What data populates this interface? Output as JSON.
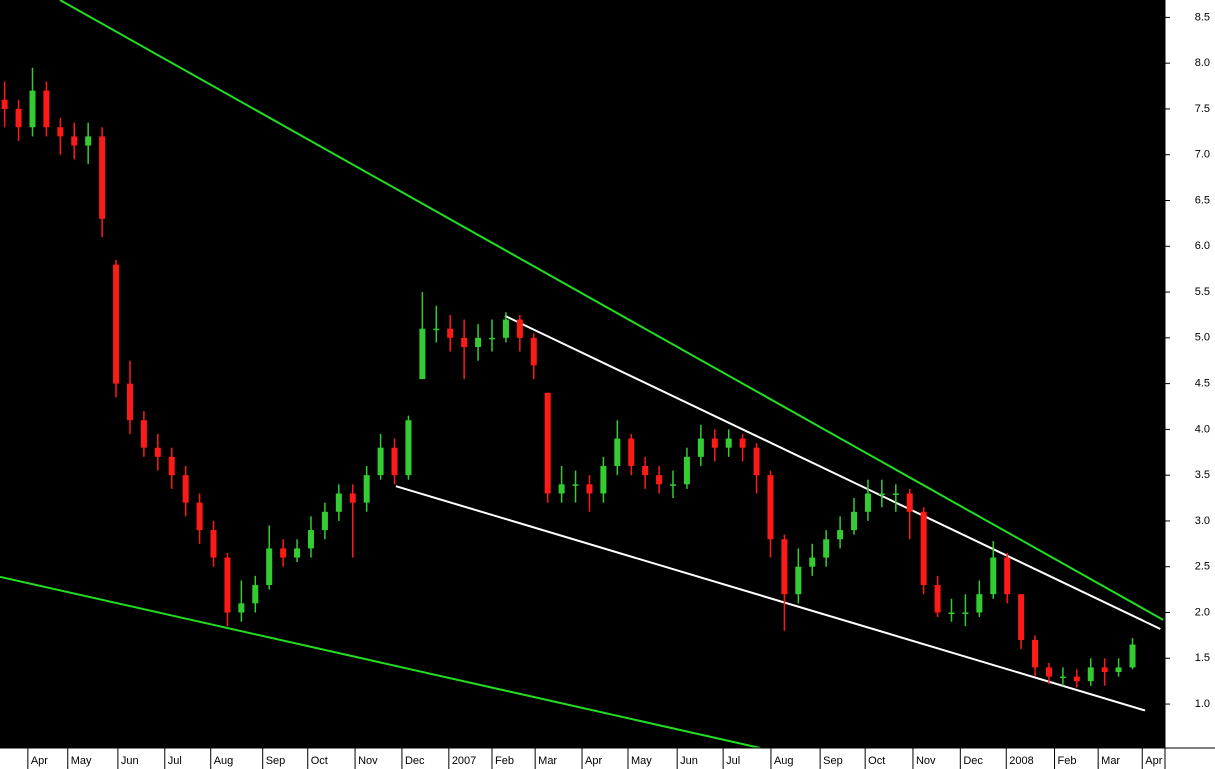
{
  "chart_data": {
    "type": "candlestick",
    "x": [
      -0.5,
      -0.2,
      0.1,
      0.4,
      0.7,
      1.0,
      1.3,
      1.6,
      1.9,
      2.2,
      2.5,
      2.8,
      3.1,
      3.4,
      3.7,
      4.0,
      4.3,
      4.6,
      4.9,
      5.2,
      5.5,
      5.8,
      6.1,
      6.4,
      6.7,
      7.0,
      7.3,
      7.6,
      7.9,
      8.2,
      8.5,
      8.8,
      9.1,
      9.4,
      9.7,
      10.0,
      10.3,
      10.6,
      10.9,
      11.2,
      11.5,
      11.8,
      12.1,
      12.4,
      12.7,
      13.0,
      13.3,
      13.6,
      13.9,
      14.2,
      14.5,
      14.8,
      15.1,
      15.4,
      15.7,
      16.0,
      16.3,
      16.6,
      16.9,
      17.2,
      17.5,
      17.8,
      18.1,
      18.4,
      18.7,
      19.0,
      19.3,
      19.6,
      19.9,
      20.2,
      20.5,
      20.8,
      21.1,
      21.4,
      21.7,
      22.0,
      22.3,
      22.6,
      22.9,
      23.2,
      23.5,
      23.8
    ],
    "open": [
      7.6,
      7.5,
      7.3,
      7.7,
      7.3,
      7.2,
      7.1,
      7.2,
      5.8,
      4.5,
      4.1,
      3.8,
      3.7,
      3.5,
      3.2,
      2.9,
      2.6,
      2.0,
      2.1,
      2.3,
      2.7,
      2.6,
      2.7,
      2.9,
      3.1,
      3.3,
      3.2,
      3.5,
      3.8,
      3.5,
      4.55,
      5.1,
      5.1,
      5.0,
      4.9,
      5.0,
      5.0,
      5.2,
      5.0,
      4.4,
      3.3,
      3.4,
      3.4,
      3.3,
      3.6,
      3.9,
      3.6,
      3.5,
      3.4,
      3.4,
      3.7,
      3.9,
      3.8,
      3.9,
      3.8,
      3.5,
      2.8,
      2.2,
      2.5,
      2.6,
      2.8,
      2.9,
      3.1,
      3.3,
      3.3,
      3.3,
      3.1,
      2.3,
      2.0,
      2.0,
      2.0,
      2.2,
      2.6,
      2.2,
      1.7,
      1.4,
      1.3,
      1.3,
      1.25,
      1.4,
      1.35,
      1.4
    ],
    "high": [
      7.8,
      7.6,
      7.95,
      7.8,
      7.4,
      7.35,
      7.35,
      7.3,
      5.85,
      4.75,
      4.2,
      3.95,
      3.8,
      3.6,
      3.3,
      3.0,
      2.65,
      2.35,
      2.4,
      2.95,
      2.8,
      2.8,
      3.05,
      3.2,
      3.4,
      3.4,
      3.6,
      3.95,
      3.9,
      4.15,
      5.5,
      5.35,
      5.25,
      5.2,
      5.15,
      5.2,
      5.28,
      5.25,
      5.05,
      4.4,
      3.6,
      3.55,
      3.5,
      3.7,
      4.1,
      3.95,
      3.7,
      3.6,
      3.55,
      3.8,
      4.05,
      4.0,
      4.0,
      3.95,
      3.85,
      3.55,
      2.85,
      2.7,
      2.75,
      2.9,
      3.05,
      3.25,
      3.45,
      3.45,
      3.4,
      3.35,
      3.15,
      2.4,
      2.15,
      2.2,
      2.35,
      2.78,
      2.65,
      2.2,
      1.75,
      1.45,
      1.4,
      1.38,
      1.5,
      1.5,
      1.5,
      1.72
    ],
    "low": [
      7.3,
      7.15,
      7.2,
      7.2,
      7.0,
      6.95,
      6.9,
      6.1,
      4.35,
      3.95,
      3.7,
      3.55,
      3.35,
      3.05,
      2.75,
      2.5,
      1.85,
      1.9,
      2.0,
      2.25,
      2.5,
      2.55,
      2.6,
      2.8,
      3.0,
      2.6,
      3.1,
      3.45,
      3.4,
      3.45,
      4.55,
      4.95,
      4.85,
      4.55,
      4.75,
      4.85,
      4.95,
      4.85,
      4.55,
      3.2,
      3.2,
      3.2,
      3.1,
      3.2,
      3.5,
      3.5,
      3.35,
      3.3,
      3.25,
      3.35,
      3.6,
      3.65,
      3.7,
      3.65,
      3.3,
      2.6,
      1.8,
      2.1,
      2.4,
      2.5,
      2.7,
      2.85,
      3.0,
      3.15,
      3.1,
      2.8,
      2.2,
      1.95,
      1.9,
      1.85,
      1.95,
      2.15,
      2.1,
      1.6,
      1.3,
      1.22,
      1.2,
      1.18,
      1.2,
      1.2,
      1.3,
      1.38
    ],
    "close": [
      7.5,
      7.3,
      7.7,
      7.3,
      7.2,
      7.1,
      7.2,
      6.3,
      4.5,
      4.1,
      3.8,
      3.7,
      3.5,
      3.2,
      2.9,
      2.6,
      2.0,
      2.1,
      2.3,
      2.7,
      2.6,
      2.7,
      2.9,
      3.1,
      3.3,
      3.2,
      3.5,
      3.8,
      3.5,
      4.1,
      5.1,
      5.1,
      5.0,
      4.9,
      5.0,
      5.0,
      5.2,
      5.0,
      4.7,
      3.3,
      3.4,
      3.4,
      3.3,
      3.6,
      3.9,
      3.6,
      3.5,
      3.4,
      3.4,
      3.7,
      3.9,
      3.8,
      3.9,
      3.8,
      3.5,
      2.8,
      2.2,
      2.5,
      2.6,
      2.8,
      2.9,
      3.1,
      3.3,
      3.3,
      3.3,
      3.1,
      2.3,
      2.0,
      2.0,
      2.0,
      2.2,
      2.6,
      2.2,
      1.7,
      1.4,
      1.3,
      1.3,
      1.25,
      1.4,
      1.35,
      1.4,
      1.65
    ],
    "up_color": "#33cc33",
    "down_color": "#ff1a1a",
    "trend_lines": [
      {
        "x": [
          0.69,
          24.46
        ],
        "y": [
          8.69,
          1.92
        ],
        "color": "#22dd22"
      },
      {
        "x": [
          -0.6,
          15.78
        ],
        "y": [
          2.39,
          0.52
        ],
        "color": "#22dd22"
      },
      {
        "x": [
          10.28,
          24.4
        ],
        "y": [
          5.24,
          1.82
        ],
        "color": "#ffffff"
      },
      {
        "x": [
          7.93,
          24.07
        ],
        "y": [
          3.38,
          0.93
        ],
        "color": "#ffffff"
      }
    ],
    "xlim": [
      -0.6,
      24.5
    ],
    "xticks": [
      {
        "value": 0,
        "label": "Apr"
      },
      {
        "value": 0.86,
        "label": "May"
      },
      {
        "value": 1.94,
        "label": "Jun"
      },
      {
        "value": 2.95,
        "label": "Jul"
      },
      {
        "value": 3.94,
        "label": "Aug"
      },
      {
        "value": 5.06,
        "label": "Sep"
      },
      {
        "value": 6.03,
        "label": "Oct"
      },
      {
        "value": 7.05,
        "label": "Nov"
      },
      {
        "value": 8.06,
        "label": "Dec"
      },
      {
        "value": 9.07,
        "label": "2007"
      },
      {
        "value": 10.0,
        "label": "Feb"
      },
      {
        "value": 10.93,
        "label": "Mar"
      },
      {
        "value": 11.94,
        "label": "Apr"
      },
      {
        "value": 12.93,
        "label": "May"
      },
      {
        "value": 13.99,
        "label": "Jun"
      },
      {
        "value": 14.98,
        "label": "Jul"
      },
      {
        "value": 16.01,
        "label": "Aug"
      },
      {
        "value": 17.07,
        "label": "Sep"
      },
      {
        "value": 18.04,
        "label": "Oct"
      },
      {
        "value": 19.07,
        "label": "Nov"
      },
      {
        "value": 20.09,
        "label": "Dec"
      },
      {
        "value": 21.08,
        "label": "2008"
      },
      {
        "value": 22.12,
        "label": "Feb"
      },
      {
        "value": 23.06,
        "label": "Mar"
      },
      {
        "value": 24.01,
        "label": "Apr"
      }
    ],
    "ylim": [
      0.52,
      8.69
    ],
    "yticks": [
      {
        "value": 1,
        "label": "1.0"
      },
      1.5,
      {
        "value": 2,
        "label": "2.0"
      },
      2.5,
      {
        "value": 3,
        "label": "3.0"
      },
      3.5,
      {
        "value": 4,
        "label": "4.0"
      },
      4.5,
      {
        "value": 5,
        "label": "5.0"
      },
      5.5,
      {
        "value": 6,
        "label": "6.0"
      },
      6.5,
      {
        "value": 7,
        "label": "7.0"
      },
      7.5,
      {
        "value": 8,
        "label": "8.0"
      },
      8.5
    ]
  }
}
